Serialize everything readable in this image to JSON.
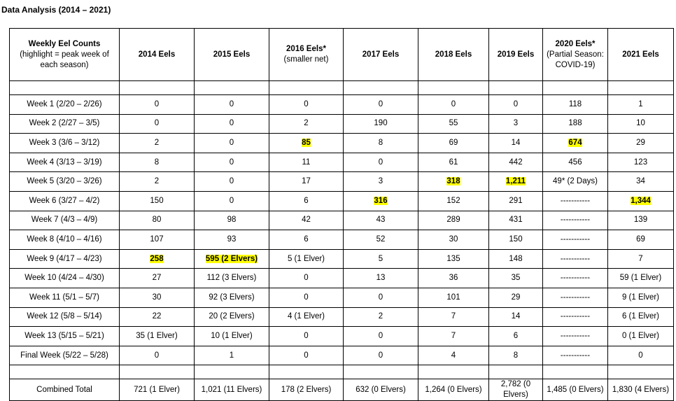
{
  "title": "Data Analysis (2014 – 2021)",
  "colors": {
    "highlight": "#ffff00"
  },
  "headers": [
    {
      "main": "Weekly Eel Counts",
      "sub": "(highlight = peak week of each season)"
    },
    {
      "main": "2014 Eels",
      "sub": ""
    },
    {
      "main": "2015 Eels",
      "sub": ""
    },
    {
      "main": "2016 Eels*",
      "sub": "(smaller net)"
    },
    {
      "main": "2017 Eels",
      "sub": ""
    },
    {
      "main": "2018 Eels",
      "sub": ""
    },
    {
      "main": "2019 Eels",
      "sub": ""
    },
    {
      "main": "2020 Eels*",
      "sub": "(Partial Season:  COVID-19)"
    },
    {
      "main": "2021 Eels",
      "sub": ""
    }
  ],
  "rows": [
    {
      "label": "Week 1 (2/20 – 2/26)",
      "cells": [
        {
          "v": "0"
        },
        {
          "v": "0"
        },
        {
          "v": "0"
        },
        {
          "v": "0"
        },
        {
          "v": "0"
        },
        {
          "v": "0"
        },
        {
          "v": "118"
        },
        {
          "v": "1"
        }
      ]
    },
    {
      "label": "Week 2 (2/27 – 3/5)",
      "cells": [
        {
          "v": "0"
        },
        {
          "v": "0"
        },
        {
          "v": "2"
        },
        {
          "v": "190"
        },
        {
          "v": "55"
        },
        {
          "v": "3"
        },
        {
          "v": "188"
        },
        {
          "v": "10"
        }
      ]
    },
    {
      "label": "Week 3 (3/6 – 3/12)",
      "cells": [
        {
          "v": "2"
        },
        {
          "v": "0"
        },
        {
          "v": "85",
          "peak": true
        },
        {
          "v": "8"
        },
        {
          "v": "69"
        },
        {
          "v": "14"
        },
        {
          "v": "674",
          "peak": true
        },
        {
          "v": "29"
        }
      ]
    },
    {
      "label": "Week 4 (3/13 – 3/19)",
      "cells": [
        {
          "v": "8"
        },
        {
          "v": "0"
        },
        {
          "v": "11"
        },
        {
          "v": "0"
        },
        {
          "v": "61"
        },
        {
          "v": "442"
        },
        {
          "v": "456"
        },
        {
          "v": "123"
        }
      ]
    },
    {
      "label": "Week 5 (3/20 – 3/26)",
      "cells": [
        {
          "v": "2"
        },
        {
          "v": "0"
        },
        {
          "v": "17"
        },
        {
          "v": "3"
        },
        {
          "v": "318",
          "peak": true
        },
        {
          "v": "1,211",
          "peak": true
        },
        {
          "v": "49* (2 Days)"
        },
        {
          "v": "34"
        }
      ]
    },
    {
      "label": "Week 6 (3/27 – 4/2)",
      "cells": [
        {
          "v": "150"
        },
        {
          "v": "0"
        },
        {
          "v": "6"
        },
        {
          "v": "316",
          "peak": true
        },
        {
          "v": "152"
        },
        {
          "v": "291"
        },
        {
          "v": "-----------"
        },
        {
          "v": "1,344",
          "peak": true
        }
      ]
    },
    {
      "label": "Week 7 (4/3 – 4/9)",
      "cells": [
        {
          "v": "80"
        },
        {
          "v": "98"
        },
        {
          "v": "42"
        },
        {
          "v": "43"
        },
        {
          "v": "289"
        },
        {
          "v": "431"
        },
        {
          "v": "-----------"
        },
        {
          "v": "139"
        }
      ]
    },
    {
      "label": "Week 8 (4/10 – 4/16)",
      "cells": [
        {
          "v": "107"
        },
        {
          "v": "93"
        },
        {
          "v": "6"
        },
        {
          "v": "52"
        },
        {
          "v": "30"
        },
        {
          "v": "150"
        },
        {
          "v": "-----------"
        },
        {
          "v": "69"
        }
      ]
    },
    {
      "label": "Week 9 (4/17 – 4/23)",
      "cells": [
        {
          "v": "258",
          "peak": true
        },
        {
          "v": "595 (2 Elvers)",
          "peak": true
        },
        {
          "v": "5 (1 Elver)"
        },
        {
          "v": "5"
        },
        {
          "v": "135"
        },
        {
          "v": "148"
        },
        {
          "v": "-----------"
        },
        {
          "v": "7"
        }
      ]
    },
    {
      "label": "Week 10 (4/24 – 4/30)",
      "cells": [
        {
          "v": "27"
        },
        {
          "v": "112 (3 Elvers)"
        },
        {
          "v": "0"
        },
        {
          "v": "13"
        },
        {
          "v": "36"
        },
        {
          "v": "35"
        },
        {
          "v": "-----------"
        },
        {
          "v": "59 (1 Elver)"
        }
      ]
    },
    {
      "label": "Week 11 (5/1 – 5/7)",
      "cells": [
        {
          "v": "30"
        },
        {
          "v": "92 (3 Elvers)"
        },
        {
          "v": "0"
        },
        {
          "v": "0"
        },
        {
          "v": "101"
        },
        {
          "v": "29"
        },
        {
          "v": "-----------"
        },
        {
          "v": "9 (1 Elver)"
        }
      ]
    },
    {
      "label": "Week 12 (5/8 – 5/14)",
      "cells": [
        {
          "v": "22"
        },
        {
          "v": "20 (2 Elvers)"
        },
        {
          "v": "4 (1 Elver)"
        },
        {
          "v": "2"
        },
        {
          "v": "7"
        },
        {
          "v": "14"
        },
        {
          "v": "-----------"
        },
        {
          "v": "6 (1 Elver)"
        }
      ]
    },
    {
      "label": "Week 13 (5/15 – 5/21)",
      "cells": [
        {
          "v": "35 (1 Elver)"
        },
        {
          "v": "10 (1 Elver)"
        },
        {
          "v": "0"
        },
        {
          "v": "0"
        },
        {
          "v": "7"
        },
        {
          "v": "6"
        },
        {
          "v": "-----------"
        },
        {
          "v": "0 (1 Elver)"
        }
      ]
    },
    {
      "label": "Final Week (5/22 – 5/28)",
      "cells": [
        {
          "v": "0"
        },
        {
          "v": "1"
        },
        {
          "v": "0"
        },
        {
          "v": "0"
        },
        {
          "v": "4"
        },
        {
          "v": "8"
        },
        {
          "v": "-----------"
        },
        {
          "v": "0"
        }
      ]
    }
  ],
  "total": {
    "label": "Combined Total",
    "cells": [
      "721 (1 Elver)",
      "1,021 (11 Elvers)",
      "178 (2 Elvers)",
      "632 (0 Elvers)",
      "1,264 (0 Elvers)",
      "2,782 (0 Elvers)",
      "1,485 (0 Elvers)",
      "1,830 (4 Elvers)"
    ]
  }
}
